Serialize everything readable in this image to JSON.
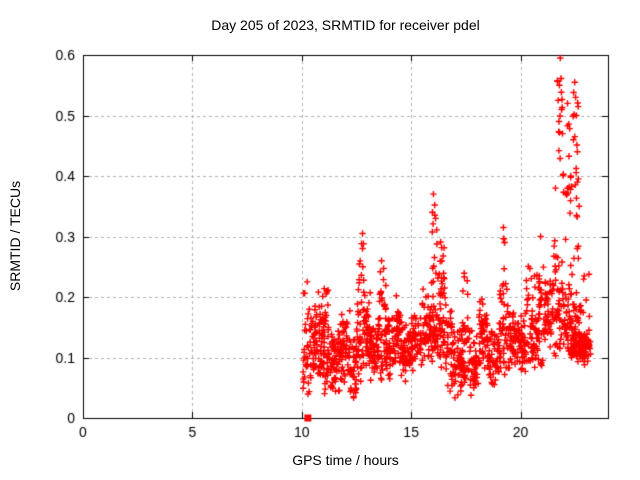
{
  "chart_data": {
    "type": "scatter",
    "title": "Day 205 of 2023, SRMTID for receiver pdel",
    "xlabel": "GPS time / hours",
    "ylabel": "SRMTID / TECUs",
    "xlim": [
      0,
      24
    ],
    "ylim": [
      0,
      0.6
    ],
    "xticks": [
      [
        0,
        "0"
      ],
      [
        5,
        "5"
      ],
      [
        10,
        "10"
      ],
      [
        15,
        "15"
      ],
      [
        20,
        "20"
      ]
    ],
    "yticks": [
      [
        0,
        "0"
      ],
      [
        0.1,
        "0.1"
      ],
      [
        0.2,
        "0.2"
      ],
      [
        0.3,
        "0.3"
      ],
      [
        0.4,
        "0.4"
      ],
      [
        0.5,
        "0.5"
      ],
      [
        0.6,
        "0.6"
      ]
    ],
    "grid": true,
    "legend": null,
    "marker": {
      "shape": "plus",
      "size": 7,
      "color": "#ff0000"
    },
    "colors": {
      "marker": "#ff0000",
      "grid": "#b4b4b4",
      "axis": "#000000",
      "background": "#ffffff"
    },
    "data_time_range_hours": [
      10.05,
      23.2
    ],
    "zero_marker": {
      "x": 10.28,
      "y": 0,
      "shape": "filled-square",
      "color": "#ff0000"
    },
    "seed": 205,
    "band_segments": [
      [
        10.05,
        10.35,
        28,
        0.03,
        0.23
      ],
      [
        10.35,
        10.7,
        42,
        0.05,
        0.2
      ],
      [
        10.7,
        11.0,
        38,
        0.05,
        0.25
      ],
      [
        11.0,
        11.35,
        42,
        0.04,
        0.22
      ],
      [
        11.35,
        11.75,
        50,
        0.03,
        0.16
      ],
      [
        11.75,
        12.2,
        50,
        0.05,
        0.18
      ],
      [
        12.2,
        12.5,
        36,
        0.02,
        0.14
      ],
      [
        12.5,
        12.85,
        38,
        0.06,
        0.27
      ],
      [
        12.85,
        13.15,
        38,
        0.07,
        0.24
      ],
      [
        13.15,
        13.5,
        42,
        0.05,
        0.17
      ],
      [
        13.5,
        13.85,
        38,
        0.06,
        0.24
      ],
      [
        13.85,
        14.25,
        46,
        0.06,
        0.17
      ],
      [
        14.25,
        14.55,
        36,
        0.07,
        0.21
      ],
      [
        14.55,
        15.0,
        50,
        0.06,
        0.16
      ],
      [
        15.0,
        15.5,
        50,
        0.07,
        0.19
      ],
      [
        15.5,
        15.9,
        42,
        0.08,
        0.23
      ],
      [
        15.9,
        16.3,
        42,
        0.09,
        0.3
      ],
      [
        16.3,
        16.6,
        36,
        0.08,
        0.27
      ],
      [
        16.6,
        17.0,
        42,
        0.03,
        0.19
      ],
      [
        17.0,
        17.35,
        40,
        0.02,
        0.15
      ],
      [
        17.35,
        17.7,
        36,
        0.05,
        0.23
      ],
      [
        17.7,
        18.1,
        42,
        0.03,
        0.15
      ],
      [
        18.1,
        18.5,
        46,
        0.06,
        0.21
      ],
      [
        18.5,
        19.0,
        50,
        0.04,
        0.16
      ],
      [
        19.0,
        19.4,
        42,
        0.06,
        0.24
      ],
      [
        19.4,
        19.85,
        46,
        0.07,
        0.19
      ],
      [
        19.85,
        20.25,
        46,
        0.06,
        0.19
      ],
      [
        20.25,
        20.65,
        42,
        0.08,
        0.27
      ],
      [
        20.65,
        21.05,
        42,
        0.08,
        0.28
      ],
      [
        21.05,
        21.45,
        42,
        0.1,
        0.24
      ],
      [
        21.45,
        21.75,
        32,
        0.1,
        0.34
      ],
      [
        21.75,
        22.1,
        36,
        0.11,
        0.3
      ],
      [
        22.1,
        22.45,
        40,
        0.1,
        0.28
      ],
      [
        22.3,
        23.0,
        80,
        0.09,
        0.145
      ],
      [
        22.45,
        22.8,
        26,
        0.08,
        0.22
      ],
      [
        22.8,
        23.2,
        36,
        0.08,
        0.15
      ]
    ],
    "spike_segments": [
      [
        21.68,
        21.95,
        12,
        0.42,
        0.57
      ],
      [
        22.0,
        22.25,
        9,
        0.36,
        0.5
      ],
      [
        22.35,
        22.65,
        12,
        0.38,
        0.55
      ],
      [
        21.9,
        22.35,
        9,
        0.28,
        0.42
      ],
      [
        22.55,
        22.78,
        6,
        0.25,
        0.38
      ],
      [
        15.92,
        16.18,
        11,
        0.2,
        0.345
      ],
      [
        16.2,
        16.55,
        11,
        0.2,
        0.3
      ],
      [
        12.6,
        12.85,
        8,
        0.18,
        0.29
      ],
      [
        13.55,
        13.75,
        6,
        0.18,
        0.255
      ],
      [
        19.1,
        19.35,
        5,
        0.2,
        0.3
      ],
      [
        20.8,
        21.0,
        6,
        0.18,
        0.29
      ],
      [
        17.4,
        17.6,
        5,
        0.16,
        0.24
      ],
      [
        11.0,
        11.2,
        5,
        0.16,
        0.23
      ],
      [
        14.3,
        14.5,
        4,
        0.16,
        0.205
      ],
      [
        22.85,
        23.15,
        5,
        0.15,
        0.27
      ]
    ],
    "notable_points": [
      [
        21.82,
        0.595
      ],
      [
        21.78,
        0.55
      ],
      [
        21.72,
        0.525
      ],
      [
        21.88,
        0.51
      ],
      [
        21.76,
        0.49
      ],
      [
        21.92,
        0.47
      ],
      [
        22.48,
        0.555
      ],
      [
        22.52,
        0.53
      ],
      [
        22.55,
        0.5
      ],
      [
        22.42,
        0.46
      ],
      [
        22.6,
        0.44
      ],
      [
        16.02,
        0.37
      ],
      [
        16.08,
        0.352
      ],
      [
        15.98,
        0.34
      ],
      [
        16.12,
        0.33
      ],
      [
        12.78,
        0.305
      ],
      [
        19.22,
        0.315
      ],
      [
        19.28,
        0.29
      ],
      [
        13.65,
        0.26
      ],
      [
        20.92,
        0.3
      ],
      [
        22.15,
        0.52
      ],
      [
        22.3,
        0.4
      ],
      [
        21.6,
        0.38
      ],
      [
        22.68,
        0.35
      ],
      [
        10.25,
        0.225
      ],
      [
        23.0,
        0.195
      ]
    ]
  }
}
